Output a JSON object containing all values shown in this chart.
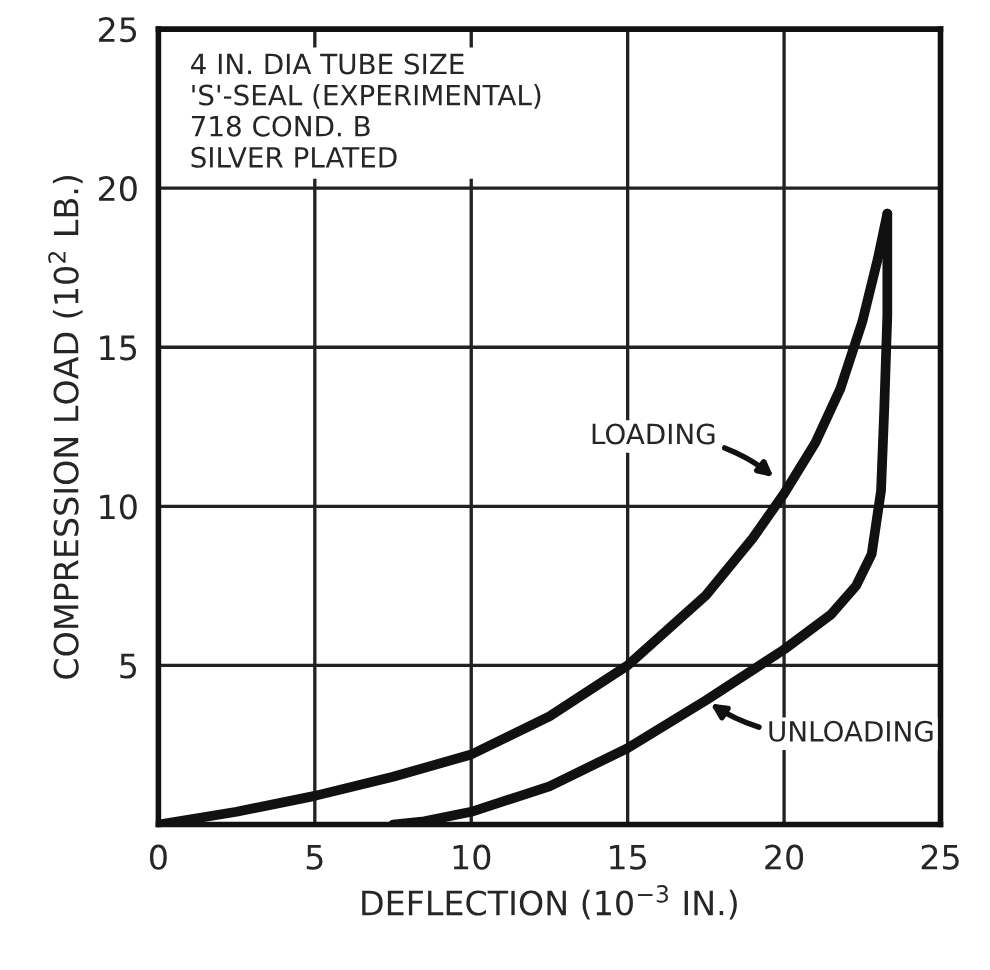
{
  "chart_data": {
    "type": "line",
    "xlabel": "DEFLECTION (10$^{−3}$ IN.)",
    "ylabel": "COMPRESSION LOAD (10$^{2}$ LB.)",
    "series": [
      {
        "color": "#111111",
        "x": [
          0,
          2.5,
          5,
          7.5,
          10,
          12.5,
          15,
          17.5,
          19,
          20,
          21,
          21.8,
          22.5,
          23,
          23.3
        ],
        "values": [
          0,
          0.4,
          0.9,
          1.5,
          2.2,
          3.4,
          5,
          7.2,
          9,
          10.4,
          12,
          13.7,
          15.8,
          17.8,
          19.2
        ]
      },
      {
        "color": "#111111",
        "x": [
          23.3,
          23.3,
          23.2,
          23.1,
          22.8,
          22.3,
          21.5,
          20,
          17.5,
          15,
          12.5,
          10,
          8.5,
          7.5
        ],
        "values": [
          19.2,
          16,
          13,
          10.5,
          8.5,
          7.5,
          6.6,
          5.5,
          3.9,
          2.4,
          1.2,
          0.4,
          0.1,
          0
        ]
      }
    ],
    "annotations": [
      "4 IN. DIA TUBE SIZE\n'S'-SEAL (EXPERIMENTAL)\n718 COND. B\nSILVER PLATED",
      {
        "text": "LOADING",
        "x": 19.8,
        "y": 10.8
      },
      {
        "text": "UNLOADING",
        "x": 17.5,
        "y": 3.9
      }
    ],
    "xlim": [
      0,
      25
    ],
    "ylim": [
      0,
      25
    ],
    "xticks": [
      0,
      5,
      10,
      15,
      20,
      25
    ],
    "yticks": [
      {
        "value": 0,
        "label": null
      },
      5,
      10,
      15,
      20,
      25
    ],
    "grid": true,
    "line_style": "solid",
    "marker": "none"
  }
}
